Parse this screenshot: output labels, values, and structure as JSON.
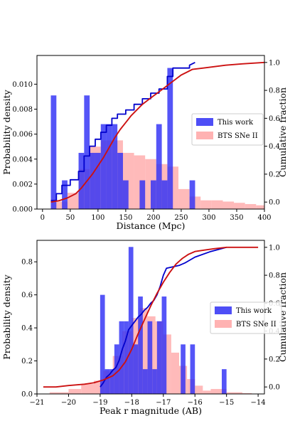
{
  "chart_data": [
    {
      "type": "bar",
      "xlabel": "Distance (Mpc)",
      "ylabel": "Probability density",
      "y2label": "Cumulative fraction",
      "xlim": [
        -10,
        400
      ],
      "ylim": [
        0,
        0.0123
      ],
      "y2lim": [
        -0.05,
        1.05
      ],
      "xticks": [
        "0",
        "50",
        "100",
        "150",
        "200",
        "250",
        "300",
        "350",
        "400"
      ],
      "yticks": [
        "0.000",
        "0.002",
        "0.004",
        "0.006",
        "0.008",
        "0.010"
      ],
      "y2ticks": [
        "0.0",
        "0.2",
        "0.4",
        "0.6",
        "0.8",
        "1.0"
      ],
      "legend": {
        "placement": "center-right",
        "entries": [
          "This work",
          "BTS SNe II"
        ]
      },
      "colors": {
        "this_work": "#2f2ff5",
        "bts": "#ff9f9f",
        "overlap": "#8a3cb0",
        "cdf_this": "#0000cc",
        "cdf_bts": "#cc1111"
      },
      "series": [
        {
          "name": "This work",
          "kind": "hist",
          "bins": [
            [
              15,
              25,
              0.0091
            ],
            [
              25,
              35,
              0
            ],
            [
              35,
              45,
              0.0023
            ],
            [
              45,
              55,
              0
            ],
            [
              55,
              65,
              0
            ],
            [
              65,
              75,
              0.0045
            ],
            [
              75,
              85,
              0.0091
            ],
            [
              85,
              95,
              0.0045
            ],
            [
              95,
              105,
              0.0045
            ],
            [
              105,
              115,
              0.0068
            ],
            [
              115,
              125,
              0.0068
            ],
            [
              125,
              135,
              0.0068
            ],
            [
              135,
              145,
              0.0045
            ],
            [
              145,
              155,
              0.0023
            ],
            [
              155,
              165,
              0
            ],
            [
              165,
              175,
              0
            ],
            [
              175,
              185,
              0.0023
            ],
            [
              185,
              195,
              0
            ],
            [
              195,
              205,
              0.0023
            ],
            [
              205,
              215,
              0.0068
            ],
            [
              215,
              225,
              0.0023
            ],
            [
              225,
              235,
              0.0113
            ],
            [
              235,
              245,
              0
            ],
            [
              245,
              255,
              0
            ],
            [
              255,
              265,
              0
            ],
            [
              265,
              275,
              0.0023
            ]
          ]
        },
        {
          "name": "BTS SNe II",
          "kind": "hist",
          "bins": [
            [
              15,
              25,
              0.0008
            ],
            [
              25,
              45,
              0.0006
            ],
            [
              45,
              65,
              0.0013
            ],
            [
              65,
              85,
              0.0032
            ],
            [
              85,
              105,
              0.005
            ],
            [
              105,
              125,
              0.0055
            ],
            [
              125,
              145,
              0.0055
            ],
            [
              145,
              165,
              0.0045
            ],
            [
              165,
              185,
              0.0043
            ],
            [
              185,
              205,
              0.004
            ],
            [
              205,
              225,
              0.0036
            ],
            [
              225,
              245,
              0.0034
            ],
            [
              245,
              265,
              0.0016
            ],
            [
              265,
              285,
              0.001
            ],
            [
              285,
              305,
              0.0007
            ],
            [
              305,
              325,
              0.0007
            ],
            [
              325,
              345,
              0.0006
            ],
            [
              345,
              365,
              0.0005
            ],
            [
              365,
              385,
              0.0004
            ],
            [
              385,
              405,
              0.0003
            ]
          ]
        },
        {
          "name": "This work",
          "kind": "cdf",
          "points": [
            [
              15,
              0.01
            ],
            [
              25,
              0.01
            ],
            [
              25,
              0.06
            ],
            [
              35,
              0.06
            ],
            [
              35,
              0.12
            ],
            [
              50,
              0.12
            ],
            [
              50,
              0.16
            ],
            [
              65,
              0.16
            ],
            [
              65,
              0.22
            ],
            [
              75,
              0.22
            ],
            [
              75,
              0.33
            ],
            [
              85,
              0.33
            ],
            [
              85,
              0.4
            ],
            [
              95,
              0.4
            ],
            [
              95,
              0.45
            ],
            [
              105,
              0.45
            ],
            [
              105,
              0.5
            ],
            [
              115,
              0.5
            ],
            [
              115,
              0.55
            ],
            [
              125,
              0.55
            ],
            [
              125,
              0.6
            ],
            [
              135,
              0.6
            ],
            [
              135,
              0.63
            ],
            [
              150,
              0.63
            ],
            [
              150,
              0.66
            ],
            [
              165,
              0.66
            ],
            [
              165,
              0.7
            ],
            [
              180,
              0.7
            ],
            [
              180,
              0.74
            ],
            [
              195,
              0.74
            ],
            [
              195,
              0.78
            ],
            [
              210,
              0.78
            ],
            [
              210,
              0.81
            ],
            [
              225,
              0.81
            ],
            [
              225,
              0.9
            ],
            [
              235,
              0.9
            ],
            [
              235,
              0.96
            ],
            [
              265,
              0.96
            ],
            [
              265,
              0.98
            ],
            [
              275,
              1.0
            ]
          ]
        },
        {
          "name": "BTS SNe II",
          "kind": "cdf",
          "points": [
            [
              15,
              0.0
            ],
            [
              30,
              0.01
            ],
            [
              45,
              0.03
            ],
            [
              60,
              0.06
            ],
            [
              70,
              0.1
            ],
            [
              80,
              0.15
            ],
            [
              90,
              0.2
            ],
            [
              100,
              0.26
            ],
            [
              110,
              0.32
            ],
            [
              120,
              0.39
            ],
            [
              130,
              0.46
            ],
            [
              140,
              0.52
            ],
            [
              150,
              0.57
            ],
            [
              160,
              0.62
            ],
            [
              170,
              0.66
            ],
            [
              180,
              0.7
            ],
            [
              190,
              0.73
            ],
            [
              200,
              0.76
            ],
            [
              210,
              0.79
            ],
            [
              220,
              0.82
            ],
            [
              230,
              0.85
            ],
            [
              240,
              0.88
            ],
            [
              250,
              0.91
            ],
            [
              260,
              0.93
            ],
            [
              270,
              0.95
            ],
            [
              290,
              0.96
            ],
            [
              310,
              0.97
            ],
            [
              330,
              0.98
            ],
            [
              360,
              0.99
            ],
            [
              400,
              1.0
            ]
          ]
        }
      ]
    },
    {
      "type": "bar",
      "xlabel": "Peak r magnitude (AB)",
      "ylabel": "Probability density",
      "y2label": "Cumulative fraction",
      "xlim": [
        -21,
        -13.8
      ],
      "ylim": [
        0,
        0.93
      ],
      "y2lim": [
        -0.05,
        1.05
      ],
      "xticks": [
        "−21",
        "−20",
        "−19",
        "−18",
        "−17",
        "−16",
        "−15",
        "−14"
      ],
      "yticks": [
        "0.0",
        "0.2",
        "0.4",
        "0.6",
        "0.8"
      ],
      "y2ticks": [
        "0.0",
        "0.2",
        "0.4",
        "0.6",
        "0.8",
        "1.0"
      ],
      "legend": {
        "placement": "center-right",
        "entries": [
          "This work",
          "BTS SNe II"
        ]
      },
      "colors": {
        "this_work": "#2f2ff5",
        "bts": "#ff9f9f",
        "overlap": "#8a3cb0",
        "cdf_this": "#0000cc",
        "cdf_bts": "#cc1111"
      },
      "series": [
        {
          "name": "This work",
          "kind": "hist",
          "bins": [
            [
              -19.0,
              -18.85,
              0.6
            ],
            [
              -18.85,
              -18.7,
              0.15
            ],
            [
              -18.7,
              -18.55,
              0.15
            ],
            [
              -18.55,
              -18.4,
              0.3
            ],
            [
              -18.4,
              -18.25,
              0.44
            ],
            [
              -18.25,
              -18.1,
              0.44
            ],
            [
              -18.1,
              -17.95,
              0.89
            ],
            [
              -17.95,
              -17.8,
              0.3
            ],
            [
              -17.8,
              -17.65,
              0.59
            ],
            [
              -17.65,
              -17.5,
              0.15
            ],
            [
              -17.5,
              -17.35,
              0.44
            ],
            [
              -17.35,
              -17.2,
              0.15
            ],
            [
              -17.2,
              -17.05,
              0.44
            ],
            [
              -17.05,
              -16.9,
              0.59
            ],
            [
              -16.9,
              -16.45,
              0
            ],
            [
              -16.45,
              -16.3,
              0.3
            ],
            [
              -16.3,
              -16.15,
              0
            ],
            [
              -16.15,
              -16.0,
              0.3
            ],
            [
              -16.0,
              -15.15,
              0
            ],
            [
              -15.15,
              -15.0,
              0.15
            ]
          ]
        },
        {
          "name": "BTS SNe II",
          "kind": "hist",
          "bins": [
            [
              -20.6,
              -20.0,
              0.01
            ],
            [
              -20.0,
              -19.6,
              0.03
            ],
            [
              -19.6,
              -19.2,
              0.06
            ],
            [
              -19.2,
              -18.9,
              0.08
            ],
            [
              -18.9,
              -18.6,
              0.14
            ],
            [
              -18.6,
              -18.3,
              0.23
            ],
            [
              -18.3,
              -18.0,
              0.38
            ],
            [
              -18.0,
              -17.75,
              0.46
            ],
            [
              -17.75,
              -17.5,
              0.52
            ],
            [
              -17.5,
              -17.25,
              0.47
            ],
            [
              -17.25,
              -17.0,
              0.44
            ],
            [
              -17.0,
              -16.75,
              0.36
            ],
            [
              -16.75,
              -16.5,
              0.25
            ],
            [
              -16.5,
              -16.25,
              0.17
            ],
            [
              -16.25,
              -16.0,
              0.09
            ],
            [
              -16.0,
              -15.75,
              0.05
            ],
            [
              -15.75,
              -15.5,
              0.02
            ],
            [
              -15.5,
              -15.0,
              0.03
            ],
            [
              -15.0,
              -14.5,
              0.01
            ],
            [
              -14.5,
              -14.2,
              0.005
            ]
          ]
        },
        {
          "name": "This work",
          "kind": "cdf",
          "points": [
            [
              -19.0,
              0.0
            ],
            [
              -18.9,
              0.03
            ],
            [
              -18.8,
              0.07
            ],
            [
              -18.7,
              0.09
            ],
            [
              -18.6,
              0.12
            ],
            [
              -18.5,
              0.14
            ],
            [
              -18.4,
              0.19
            ],
            [
              -18.3,
              0.27
            ],
            [
              -18.2,
              0.33
            ],
            [
              -18.1,
              0.41
            ],
            [
              -18.0,
              0.44
            ],
            [
              -17.9,
              0.47
            ],
            [
              -17.8,
              0.5
            ],
            [
              -17.7,
              0.52
            ],
            [
              -17.6,
              0.55
            ],
            [
              -17.5,
              0.57
            ],
            [
              -17.4,
              0.6
            ],
            [
              -17.3,
              0.62
            ],
            [
              -17.2,
              0.66
            ],
            [
              -17.1,
              0.72
            ],
            [
              -17.0,
              0.8
            ],
            [
              -16.9,
              0.85
            ],
            [
              -16.7,
              0.86
            ],
            [
              -16.5,
              0.87
            ],
            [
              -16.3,
              0.89
            ],
            [
              -16.0,
              0.93
            ],
            [
              -15.5,
              0.97
            ],
            [
              -15.0,
              1.0
            ]
          ]
        },
        {
          "name": "BTS SNe II",
          "kind": "cdf",
          "points": [
            [
              -20.8,
              0.0
            ],
            [
              -20.4,
              0.0
            ],
            [
              -20.0,
              0.01
            ],
            [
              -19.5,
              0.02
            ],
            [
              -19.2,
              0.03
            ],
            [
              -18.9,
              0.05
            ],
            [
              -18.6,
              0.08
            ],
            [
              -18.4,
              0.12
            ],
            [
              -18.2,
              0.18
            ],
            [
              -18.0,
              0.27
            ],
            [
              -17.8,
              0.38
            ],
            [
              -17.6,
              0.48
            ],
            [
              -17.4,
              0.58
            ],
            [
              -17.2,
              0.67
            ],
            [
              -17.0,
              0.75
            ],
            [
              -16.8,
              0.82
            ],
            [
              -16.6,
              0.88
            ],
            [
              -16.4,
              0.92
            ],
            [
              -16.2,
              0.95
            ],
            [
              -16.0,
              0.97
            ],
            [
              -15.7,
              0.98
            ],
            [
              -15.4,
              0.99
            ],
            [
              -15.0,
              1.0
            ],
            [
              -14.0,
              1.0
            ]
          ]
        }
      ]
    }
  ]
}
